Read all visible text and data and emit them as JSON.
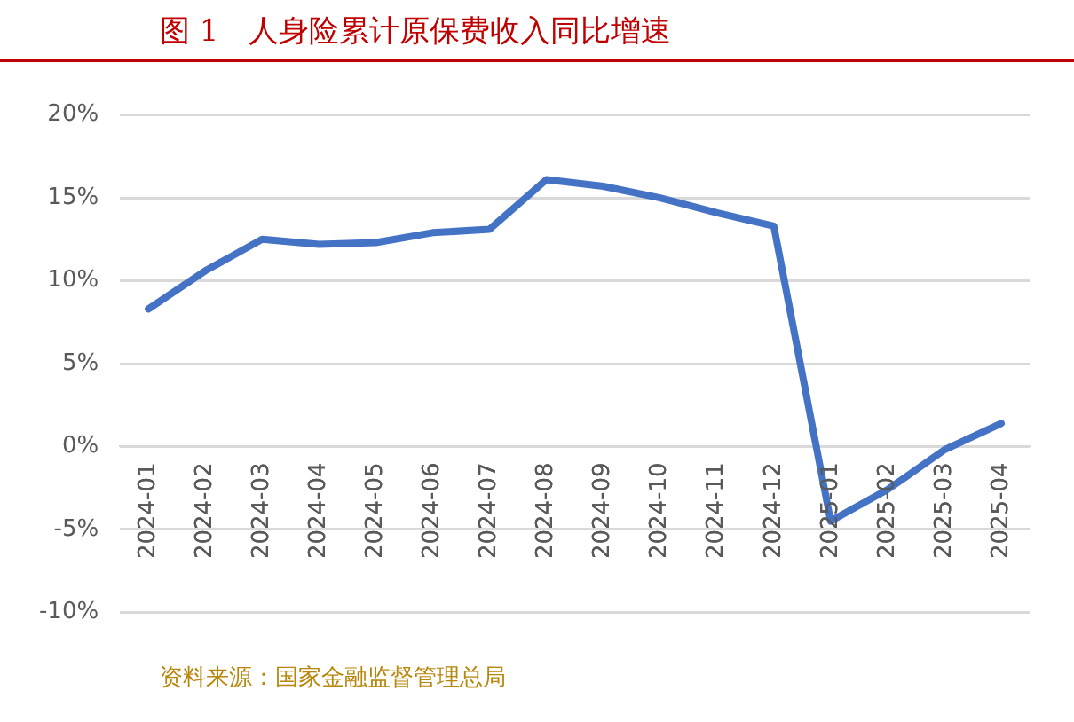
{
  "chart_data": {
    "type": "line",
    "title": "图 1　人身险累计原保费收入同比增速",
    "categories": [
      "2024-01",
      "2024-02",
      "2024-03",
      "2024-04",
      "2024-05",
      "2024-06",
      "2024-07",
      "2024-08",
      "2024-09",
      "2024-10",
      "2024-11",
      "2024-12",
      "2025-01",
      "2025-02",
      "2025-03",
      "2025-04"
    ],
    "series": [
      {
        "color": "#4472c4",
        "values": [
          8.3,
          10.6,
          12.5,
          12.2,
          12.3,
          12.9,
          13.1,
          16.1,
          15.7,
          15.0,
          14.1,
          13.3,
          -4.5,
          -2.6,
          -0.2,
          1.4
        ]
      }
    ],
    "ylim": [
      -10,
      20
    ],
    "yticks": [
      {
        "value": -10,
        "label": "-10%"
      },
      {
        "value": -5,
        "label": "-5%"
      },
      {
        "value": 0,
        "label": "0%"
      },
      {
        "value": 5,
        "label": "5%"
      },
      {
        "value": 10,
        "label": "10%"
      },
      {
        "value": 15,
        "label": "15%"
      },
      {
        "value": 20,
        "label": "20%"
      }
    ],
    "grid": "y",
    "legend": false,
    "marker": "none",
    "line_style": "solid",
    "annotations": [
      "资料来源：国家金融监督管理总局"
    ]
  }
}
